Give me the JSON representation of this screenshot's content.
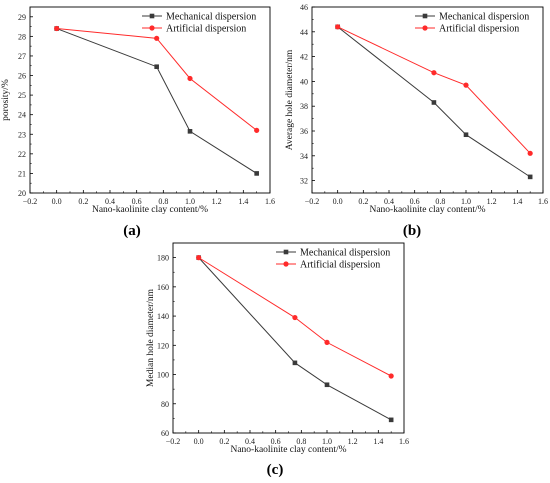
{
  "colors": {
    "mechanical": "#3a3a3a",
    "artificial": "#ff2a2a",
    "axis": "#000000"
  },
  "chart_data": [
    {
      "type": "line",
      "panel_label": "(a)",
      "xlabel": "Nano-kaolinite clay content/%",
      "ylabel": "porosity/%",
      "xlim": [
        -0.2,
        1.6
      ],
      "ylim": [
        20,
        29.5
      ],
      "xticks": [
        -0.2,
        0.0,
        0.2,
        0.4,
        0.6,
        0.8,
        1.0,
        1.2,
        1.4,
        1.6
      ],
      "yticks": [
        20,
        21,
        22,
        23,
        24,
        25,
        26,
        27,
        28,
        29
      ],
      "legend_position": "top-right",
      "x": [
        0.0,
        0.75,
        1.0,
        1.5
      ],
      "series": [
        {
          "name": "Mechanical dispersion",
          "marker": "square",
          "values": [
            28.4,
            26.45,
            23.15,
            21.0
          ]
        },
        {
          "name": "Artificial dispersion",
          "marker": "circle",
          "values": [
            28.4,
            27.9,
            25.85,
            23.2
          ]
        }
      ]
    },
    {
      "type": "line",
      "panel_label": "(b)",
      "xlabel": "Nano-kaolinite clay content/%",
      "ylabel": "Average hole diameter/nm",
      "xlim": [
        -0.2,
        1.6
      ],
      "ylim": [
        31,
        46
      ],
      "xticks": [
        -0.2,
        0.0,
        0.2,
        0.4,
        0.6,
        0.8,
        1.0,
        1.2,
        1.4,
        1.6
      ],
      "yticks": [
        32,
        34,
        36,
        38,
        40,
        42,
        44,
        46
      ],
      "legend_position": "top-right",
      "x": [
        0.0,
        0.75,
        1.0,
        1.5
      ],
      "series": [
        {
          "name": "Mechanical dispersion",
          "marker": "square",
          "values": [
            44.4,
            38.3,
            35.7,
            32.3
          ]
        },
        {
          "name": "Artificial dispersion",
          "marker": "circle",
          "values": [
            44.4,
            40.7,
            39.7,
            34.2
          ]
        }
      ]
    },
    {
      "type": "line",
      "panel_label": "(c)",
      "xlabel": "Nano-kaolinite clay content/%",
      "ylabel": "Median hole diameter/nm",
      "xlim": [
        -0.2,
        1.6
      ],
      "ylim": [
        60,
        190
      ],
      "xticks": [
        -0.2,
        0.0,
        0.2,
        0.4,
        0.6,
        0.8,
        1.0,
        1.2,
        1.4,
        1.6
      ],
      "yticks": [
        60,
        80,
        100,
        120,
        140,
        160,
        180
      ],
      "legend_position": "top-right",
      "x": [
        0.0,
        0.75,
        1.0,
        1.5
      ],
      "series": [
        {
          "name": "Mechanical dispersion",
          "marker": "square",
          "values": [
            180,
            108,
            93,
            69
          ]
        },
        {
          "name": "Artificial dispersion",
          "marker": "circle",
          "values": [
            180,
            139,
            122,
            99
          ]
        }
      ]
    }
  ]
}
